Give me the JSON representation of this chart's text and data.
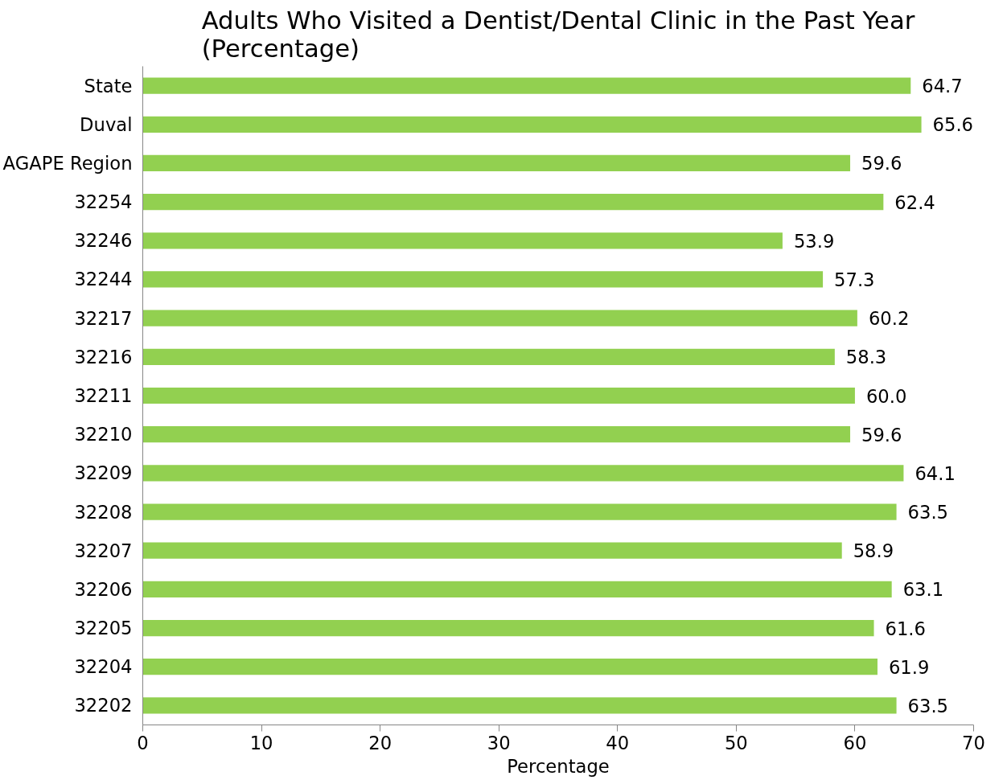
{
  "chart_data": {
    "type": "bar",
    "orientation": "horizontal",
    "title": "Adults Who Visited a Dentist/Dental Clinic in the Past Year\n(Percentage)",
    "xlabel": "Percentage",
    "categories": [
      "State",
      "Duval",
      "AGAPE Region",
      "32254",
      "32246",
      "32244",
      "32217",
      "32216",
      "32211",
      "32210",
      "32209",
      "32208",
      "32207",
      "32206",
      "32205",
      "32204",
      "32202"
    ],
    "values": [
      64.7,
      65.6,
      59.6,
      62.4,
      53.9,
      57.3,
      60.2,
      58.3,
      60.0,
      59.6,
      64.1,
      63.5,
      58.9,
      63.1,
      61.6,
      61.9,
      63.5
    ],
    "value_labels": [
      "64.7",
      "65.6",
      "59.6",
      "62.4",
      "53.9",
      "57.3",
      "60.2",
      "58.3",
      "60.0",
      "59.6",
      "64.1",
      "63.5",
      "58.9",
      "63.1",
      "61.6",
      "61.9",
      "63.5"
    ],
    "color": "#92d050",
    "xlim": [
      0,
      70
    ],
    "xticks": [
      0,
      10,
      20,
      30,
      40,
      50,
      60,
      70
    ],
    "grid": false
  }
}
